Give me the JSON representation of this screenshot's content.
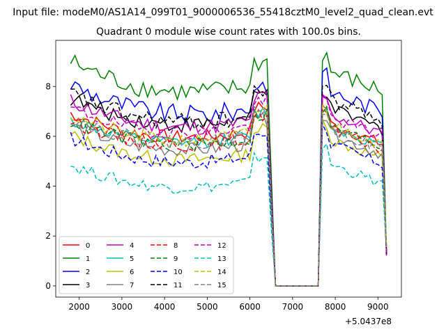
{
  "chart_data": {
    "type": "line",
    "suptitle": "Input file: modeM0/AS1A14_099T01_9000006536_55418cztM0_level2_quad_clean.evt",
    "title": "Quadrant 0 module wise count rates with 100.0s bins.",
    "xlabel": "",
    "ylabel": "",
    "x_offset_label": "+5.0437e8",
    "xlim": [
      1450,
      9550
    ],
    "ylim": [
      -0.45,
      9.85
    ],
    "xticks": [
      2000,
      3000,
      4000,
      5000,
      6000,
      7000,
      8000,
      9000
    ],
    "yticks": [
      0,
      2,
      4,
      6,
      8
    ],
    "legend_loc": "lower-left",
    "legend_ncol": 4,
    "gap_start": 6600,
    "gap_end": 7600,
    "x_segment_1": [
      1800,
      9200
    ],
    "series": [
      {
        "name": "0",
        "color": "#ff0000",
        "dash": "solid",
        "level1": 6.3,
        "level2": 6.6,
        "amp": 0.35
      },
      {
        "name": "1",
        "color": "#008000",
        "dash": "solid",
        "level1": 8.1,
        "level2": 8.7,
        "amp": 0.5
      },
      {
        "name": "2",
        "color": "#0000ff",
        "dash": "solid",
        "level1": 7.2,
        "level2": 7.9,
        "amp": 0.5
      },
      {
        "name": "3",
        "color": "#000000",
        "dash": "solid",
        "level1": 6.8,
        "level2": 7.2,
        "amp": 0.4
      },
      {
        "name": "4",
        "color": "#bf00bf",
        "dash": "solid",
        "level1": 6.7,
        "level2": 7.0,
        "amp": 0.4
      },
      {
        "name": "5",
        "color": "#00bfbf",
        "dash": "solid",
        "level1": 6.1,
        "level2": 6.5,
        "amp": 0.3
      },
      {
        "name": "6",
        "color": "#bfbf00",
        "dash": "solid",
        "level1": 5.4,
        "level2": 6.0,
        "amp": 0.35
      },
      {
        "name": "7",
        "color": "#808080",
        "dash": "solid",
        "level1": 5.8,
        "level2": 6.2,
        "amp": 0.35
      },
      {
        "name": "8",
        "color": "#ff0000",
        "dash": "dashed",
        "level1": 6.0,
        "level2": 6.4,
        "amp": 0.35
      },
      {
        "name": "9",
        "color": "#008000",
        "dash": "dashed",
        "level1": 6.0,
        "level2": 6.5,
        "amp": 0.35
      },
      {
        "name": "10",
        "color": "#0000ff",
        "dash": "dashed",
        "level1": 5.3,
        "level2": 5.8,
        "amp": 0.35
      },
      {
        "name": "11",
        "color": "#000000",
        "dash": "dashed",
        "level1": 6.9,
        "level2": 7.6,
        "amp": 0.45
      },
      {
        "name": "12",
        "color": "#bf00bf",
        "dash": "dashed",
        "level1": 6.5,
        "level2": 6.9,
        "amp": 0.35
      },
      {
        "name": "13",
        "color": "#00bfbf",
        "dash": "dashed",
        "level1": 4.3,
        "level2": 5.0,
        "amp": 0.3
      },
      {
        "name": "14",
        "color": "#bfbf00",
        "dash": "dashed",
        "level1": 6.2,
        "level2": 6.6,
        "amp": 0.35
      },
      {
        "name": "15",
        "color": "#808080",
        "dash": "dashed",
        "level1": 6.1,
        "level2": 6.4,
        "amp": 0.35
      }
    ]
  }
}
